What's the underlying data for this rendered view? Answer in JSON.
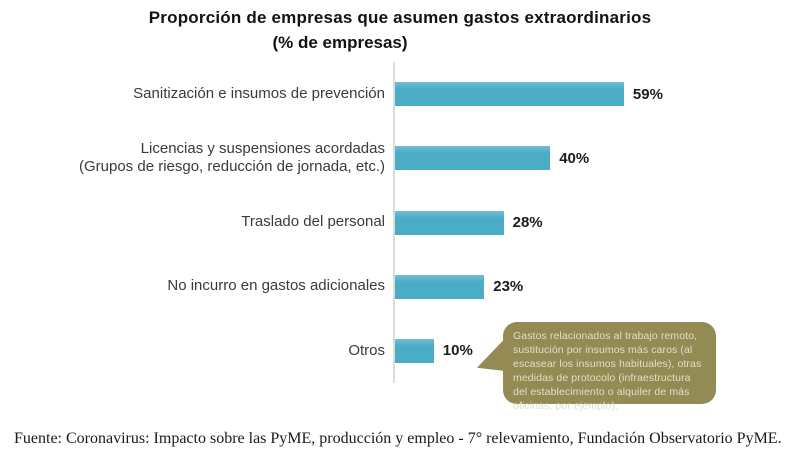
{
  "title": {
    "line1": "Proporción de empresas que asumen gastos extraordinarios",
    "line2": "(% de empresas)"
  },
  "chart_data": {
    "type": "bar",
    "orientation": "horizontal",
    "title": "Proporción de empresas que asumen gastos extraordinarios",
    "subtitle": "(% de empresas)",
    "categories": [
      "Sanitización e insumos de prevención",
      "Licencias y suspensiones acordadas\n(Grupos de riesgo, reducción de jornada, etc.)",
      "Traslado del personal",
      "No incurro en gastos adicionales",
      "Otros"
    ],
    "values": [
      59,
      40,
      28,
      23,
      10
    ],
    "value_labels": [
      "59%",
      "40%",
      "28%",
      "23%",
      "10%"
    ],
    "xlabel": "",
    "ylabel": "",
    "xlim": [
      0,
      100
    ],
    "grid": false,
    "legend": false,
    "bar_color": "#4BACC6",
    "axis_color": "#DCDCDC"
  },
  "callout": {
    "text": "Gastos relacionados al trabajo remoto, sustitución por insumos más caros (al escasear los insumos habituales), otras medidas de protocolo (infraestructura del establecimiento o alquiler de más oficinas, por ejemplo).",
    "bg_color": "#948A54",
    "text_color": "#DDE2C6"
  },
  "footer": {
    "text": "Fuente: Coronavirus: Impacto sobre las PyME, producción y empleo - 7° relevamiento, Fundación Observatorio PyME."
  }
}
